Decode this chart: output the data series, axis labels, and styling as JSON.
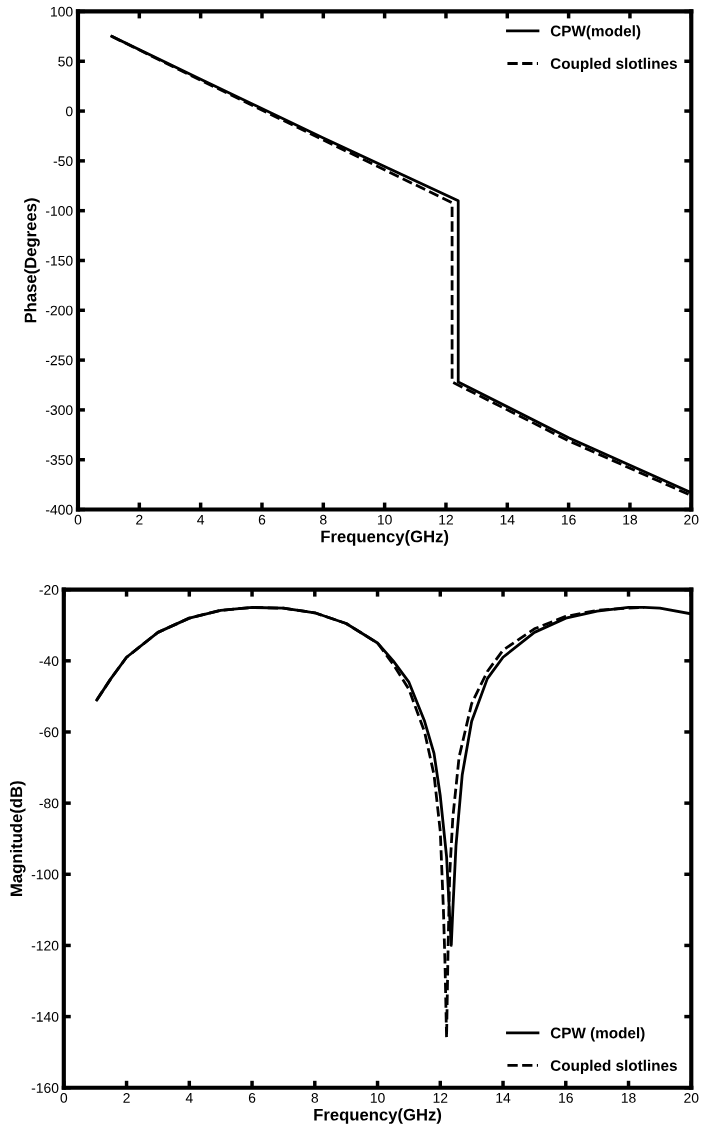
{
  "chart_data": [
    {
      "type": "line",
      "xlabel": "Frequency(GHz)",
      "ylabel": "Phase(Degrees)",
      "xlim": [
        0,
        20
      ],
      "ylim": [
        -400,
        100
      ],
      "xticks": [
        0,
        2,
        4,
        6,
        8,
        10,
        12,
        14,
        16,
        18,
        20
      ],
      "yticks": [
        -400,
        -350,
        -300,
        -250,
        -200,
        -150,
        -100,
        -50,
        0,
        50,
        100
      ],
      "legend": "top right",
      "grid": false,
      "series": [
        {
          "name": "CPW(model)",
          "color": "#000000",
          "line_style": "solid",
          "x": [
            1.1,
            4,
            8,
            12.4,
            12.4,
            16,
            20
          ],
          "values": [
            75,
            32,
            -27,
            -90,
            -272,
            -328,
            -383
          ]
        },
        {
          "name": "Coupled slotlines",
          "color": "#000000",
          "line_style": "dashed",
          "x": [
            1.1,
            4,
            8,
            12.2,
            12.2,
            16,
            20
          ],
          "values": [
            75,
            31,
            -29,
            -92,
            -272,
            -331,
            -386
          ]
        }
      ]
    },
    {
      "type": "line",
      "xlabel": "Frequency(GHz)",
      "ylabel": "Magnitude(dB)",
      "xlim": [
        0,
        20
      ],
      "ylim": [
        -160,
        -20
      ],
      "xticks": [
        0,
        2,
        4,
        6,
        8,
        10,
        12,
        14,
        16,
        18,
        20
      ],
      "yticks": [
        -160,
        -140,
        -120,
        -100,
        -80,
        -60,
        -40,
        -20
      ],
      "legend": "bottom right",
      "grid": false,
      "series": [
        {
          "name": "CPW (model)",
          "color": "#000000",
          "line_style": "solid",
          "x": [
            1.05,
            1.5,
            2,
            3,
            4,
            5,
            6,
            7,
            8,
            9,
            10,
            10.5,
            11,
            11.5,
            11.8,
            12,
            12.2,
            12.3,
            12.35,
            12.4,
            12.5,
            12.7,
            13,
            13.5,
            14,
            15,
            16,
            17,
            18,
            18.5,
            19,
            20
          ],
          "values": [
            -51,
            -45,
            -39,
            -32,
            -28,
            -25.8,
            -25,
            -25.2,
            -26.5,
            -29.5,
            -35,
            -40,
            -46,
            -57,
            -66,
            -78,
            -95,
            -112,
            -120,
            -110,
            -92,
            -72,
            -57,
            -45,
            -39,
            -32,
            -28,
            -26,
            -25,
            -25,
            -25.2,
            -26.8
          ]
        },
        {
          "name": "Coupled slotlines",
          "color": "#000000",
          "line_style": "dashed",
          "x": [
            1.05,
            1.5,
            2,
            3,
            4,
            5,
            6,
            7,
            8,
            9,
            10,
            10.5,
            11,
            11.5,
            11.8,
            12,
            12.1,
            12.15,
            12.2,
            12.25,
            12.3,
            12.4,
            12.6,
            13,
            13.5,
            14,
            15,
            16,
            17,
            18,
            18.5
          ],
          "values": [
            -51,
            -45,
            -39,
            -32,
            -28,
            -25.8,
            -25,
            -25.2,
            -26.5,
            -29.5,
            -35,
            -41,
            -48,
            -60,
            -72,
            -88,
            -110,
            -125,
            -146,
            -120,
            -100,
            -84,
            -67,
            -52,
            -43,
            -37,
            -31,
            -27.5,
            -25.8,
            -25.2,
            -25
          ]
        }
      ]
    }
  ]
}
